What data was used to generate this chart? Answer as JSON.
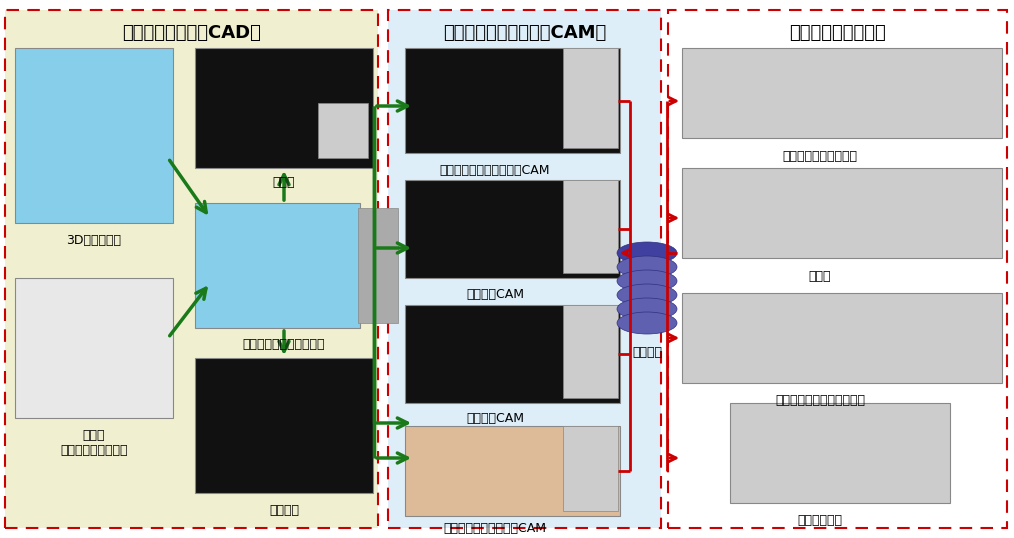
{
  "bg_color": "#ffffff",
  "s1_bg": "#f0f0d0",
  "s2_bg": "#deeef8",
  "s3_bg": "#ffffff",
  "border_color": "#cc0000",
  "green": "#1a7a1a",
  "red": "#cc0000",
  "s1_title": "展開図作成工程（CAD）",
  "s2_title": "プログラム作成工程（CAM）",
  "s3_title": "ブランク・曲げ工程",
  "label_3d": "3D図面データ",
  "label_tenkai": "展開図",
  "label_auto": "自動プログラミング装置",
  "label_sanmen": "三面図\nデータまたは紙図面",
  "label_rittai": "立体姿図",
  "label_cam1": "タレットパンチプレス用CAM",
  "label_cam2": "レーザ用CAM",
  "label_cam3": "複合機用CAM",
  "label_cam4": "ベンディングマシン用CAM",
  "label_server": "サーバー",
  "label_m1": "タレットパンチプレス",
  "label_m2": "レーザ",
  "label_m3": "複合機（パンチ＋レーザ）",
  "label_m4": "ベンディング"
}
